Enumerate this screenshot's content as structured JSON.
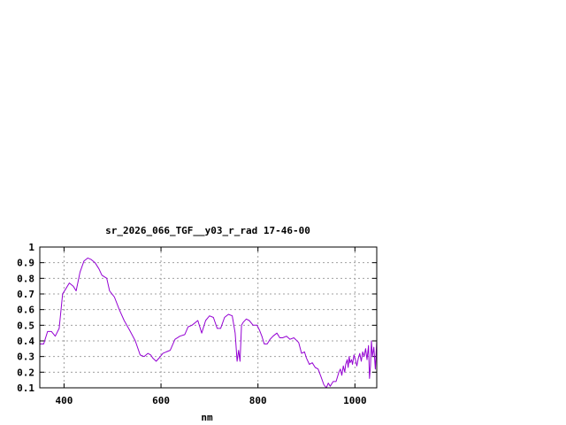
{
  "chart_data": {
    "type": "line",
    "title": "sr_2026_066_TGF__y03_r_rad 17-46-00",
    "xlabel": "nm",
    "ylabel": "",
    "xlim": [
      350,
      1045
    ],
    "ylim": [
      0.1,
      1.0
    ],
    "x_ticks": [
      400,
      600,
      800,
      1000
    ],
    "x_tick_labels": [
      "400",
      "600",
      "800",
      "1000"
    ],
    "y_ticks": [
      0.1,
      0.2,
      0.3,
      0.4,
      0.5,
      0.6,
      0.7,
      0.8,
      0.9,
      1.0
    ],
    "y_tick_labels": [
      "0.1",
      "0.2",
      "0.3",
      "0.4",
      "0.5",
      "0.6",
      "0.7",
      "0.8",
      "0.9",
      "1"
    ],
    "grid": true,
    "series": [
      {
        "color": "#9400d3",
        "x": [
          350,
          358,
          366,
          374,
          382,
          390,
          397,
          403,
          411,
          419,
          425,
          433,
          441,
          449,
          456,
          464,
          472,
          478,
          488,
          494,
          504,
          514,
          524,
          535,
          547,
          557,
          565,
          573,
          579,
          583,
          590,
          596,
          604,
          611,
          619,
          629,
          639,
          649,
          656,
          664,
          676,
          684,
          692,
          700,
          708,
          716,
          723,
          731,
          739,
          747,
          753,
          757,
          760,
          763,
          766,
          770,
          776,
          782,
          790,
          798,
          803,
          808,
          813,
          819,
          825,
          831,
          839,
          845,
          851,
          859,
          866,
          874,
          884,
          890,
          896,
          900,
          906,
          912,
          918,
          924,
          930,
          936,
          941,
          945,
          949,
          955,
          961,
          967,
          970,
          973,
          976,
          979,
          981,
          984,
          986,
          988,
          990,
          993,
          995,
          998,
          1001,
          1004,
          1007,
          1010,
          1013,
          1016,
          1019,
          1022,
          1025,
          1028,
          1030,
          1032,
          1034,
          1036,
          1039,
          1042,
          1045
        ],
        "y": [
          0.38,
          0.38,
          0.46,
          0.46,
          0.43,
          0.48,
          0.7,
          0.73,
          0.77,
          0.75,
          0.72,
          0.84,
          0.91,
          0.93,
          0.92,
          0.9,
          0.86,
          0.82,
          0.8,
          0.72,
          0.68,
          0.6,
          0.53,
          0.47,
          0.4,
          0.31,
          0.3,
          0.32,
          0.31,
          0.29,
          0.27,
          0.29,
          0.32,
          0.33,
          0.34,
          0.41,
          0.43,
          0.44,
          0.49,
          0.5,
          0.53,
          0.45,
          0.53,
          0.56,
          0.55,
          0.48,
          0.48,
          0.55,
          0.57,
          0.56,
          0.45,
          0.27,
          0.34,
          0.27,
          0.5,
          0.52,
          0.54,
          0.53,
          0.5,
          0.5,
          0.47,
          0.43,
          0.38,
          0.38,
          0.41,
          0.43,
          0.45,
          0.42,
          0.42,
          0.43,
          0.41,
          0.42,
          0.39,
          0.32,
          0.33,
          0.29,
          0.25,
          0.26,
          0.23,
          0.22,
          0.17,
          0.12,
          0.1,
          0.13,
          0.11,
          0.14,
          0.14,
          0.2,
          0.22,
          0.18,
          0.24,
          0.2,
          0.25,
          0.28,
          0.23,
          0.3,
          0.26,
          0.28,
          0.25,
          0.31,
          0.28,
          0.24,
          0.29,
          0.32,
          0.27,
          0.33,
          0.3,
          0.35,
          0.28,
          0.37,
          0.16,
          0.24,
          0.4,
          0.3,
          0.36,
          0.22,
          0.4
        ]
      }
    ]
  }
}
